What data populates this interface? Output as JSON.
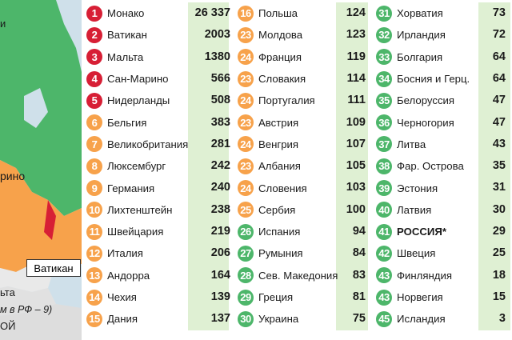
{
  "map": {
    "labels": [
      "Ватикан",
      "рино",
      "ьта",
      "ОЙ",
      "м в РФ – 9)",
      "и"
    ]
  },
  "colors": {
    "red": "#d71f35",
    "orange": "#f7a24b",
    "green": "#4db66a",
    "value_bg": "#dff0d3"
  },
  "columns": [
    [
      {
        "rank": "1",
        "name": "Монако",
        "value": "26 337",
        "color": "red"
      },
      {
        "rank": "2",
        "name": "Ватикан",
        "value": "2003",
        "color": "red"
      },
      {
        "rank": "3",
        "name": "Мальта",
        "value": "1380",
        "color": "red"
      },
      {
        "rank": "4",
        "name": "Сан-Марино",
        "value": "566",
        "color": "red"
      },
      {
        "rank": "5",
        "name": "Нидерланды",
        "value": "508",
        "color": "red"
      },
      {
        "rank": "6",
        "name": "Бельгия",
        "value": "383",
        "color": "orange"
      },
      {
        "rank": "7",
        "name": "Великобритания",
        "value": "281",
        "color": "orange"
      },
      {
        "rank": "8",
        "name": "Люксембург",
        "value": "242",
        "color": "orange"
      },
      {
        "rank": "9",
        "name": "Германия",
        "value": "240",
        "color": "orange"
      },
      {
        "rank": "10",
        "name": "Лихтенштейн",
        "value": "238",
        "color": "orange"
      },
      {
        "rank": "11",
        "name": "Швейцария",
        "value": "219",
        "color": "orange"
      },
      {
        "rank": "12",
        "name": "Италия",
        "value": "206",
        "color": "orange"
      },
      {
        "rank": "13",
        "name": "Андорра",
        "value": "164",
        "color": "orange"
      },
      {
        "rank": "14",
        "name": "Чехия",
        "value": "139",
        "color": "orange"
      },
      {
        "rank": "15",
        "name": "Дания",
        "value": "137",
        "color": "orange"
      }
    ],
    [
      {
        "rank": "16",
        "name": "Польша",
        "value": "124",
        "color": "orange"
      },
      {
        "rank": "23",
        "name": "Молдова",
        "value": "123",
        "color": "orange"
      },
      {
        "rank": "24",
        "name": "Франция",
        "value": "119",
        "color": "orange"
      },
      {
        "rank": "23",
        "name": "Словакия",
        "value": "114",
        "color": "orange"
      },
      {
        "rank": "24",
        "name": "Португалия",
        "value": "111",
        "color": "orange"
      },
      {
        "rank": "23",
        "name": "Австрия",
        "value": "109",
        "color": "orange"
      },
      {
        "rank": "24",
        "name": "Венгрия",
        "value": "107",
        "color": "orange"
      },
      {
        "rank": "23",
        "name": "Албания",
        "value": "105",
        "color": "orange"
      },
      {
        "rank": "24",
        "name": "Словения",
        "value": "103",
        "color": "orange"
      },
      {
        "rank": "25",
        "name": "Сербия",
        "value": "100",
        "color": "orange"
      },
      {
        "rank": "26",
        "name": "Испания",
        "value": "94",
        "color": "green"
      },
      {
        "rank": "27",
        "name": "Румыния",
        "value": "84",
        "color": "green"
      },
      {
        "rank": "28",
        "name": "Сев. Македония",
        "value": "83",
        "color": "green"
      },
      {
        "rank": "29",
        "name": "Греция",
        "value": "81",
        "color": "green"
      },
      {
        "rank": "30",
        "name": "Украина",
        "value": "75",
        "color": "green"
      }
    ],
    [
      {
        "rank": "31",
        "name": "Хорватия",
        "value": "73",
        "color": "green"
      },
      {
        "rank": "32",
        "name": "Ирландия",
        "value": "72",
        "color": "green"
      },
      {
        "rank": "33",
        "name": "Болгария",
        "value": "64",
        "color": "green"
      },
      {
        "rank": "34",
        "name": "Босния и Герц.",
        "value": "64",
        "color": "green"
      },
      {
        "rank": "35",
        "name": "Белоруссия",
        "value": "47",
        "color": "green"
      },
      {
        "rank": "36",
        "name": "Черногория",
        "value": "47",
        "color": "green"
      },
      {
        "rank": "37",
        "name": "Литва",
        "value": "43",
        "color": "green"
      },
      {
        "rank": "38",
        "name": "Фар. Острова",
        "value": "35",
        "color": "green"
      },
      {
        "rank": "39",
        "name": "Эстония",
        "value": "31",
        "color": "green"
      },
      {
        "rank": "40",
        "name": "Латвия",
        "value": "30",
        "color": "green"
      },
      {
        "rank": "41",
        "name": "РОССИЯ*",
        "value": "29",
        "color": "green",
        "bold": true
      },
      {
        "rank": "42",
        "name": "Швеция",
        "value": "25",
        "color": "green"
      },
      {
        "rank": "43",
        "name": "Финляндия",
        "value": "18",
        "color": "green"
      },
      {
        "rank": "43",
        "name": "Норвегия",
        "value": "15",
        "color": "green"
      },
      {
        "rank": "45",
        "name": "Исландия",
        "value": "3",
        "color": "green"
      }
    ]
  ]
}
